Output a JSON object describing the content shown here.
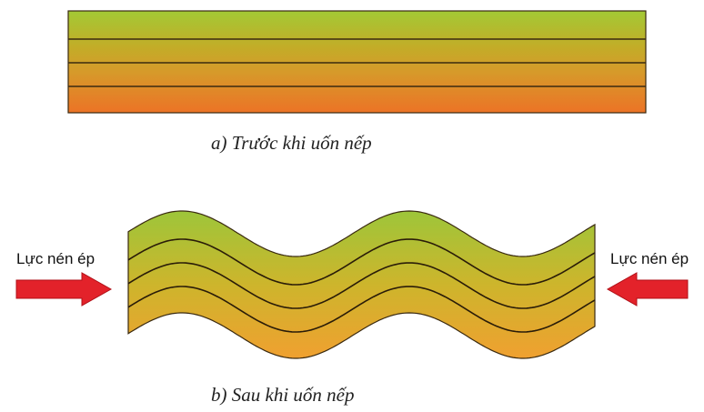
{
  "caption_before": "a) Trước khi uốn nếp",
  "caption_after": "b) Sau khi uốn nếp",
  "force_label_left": "Lực nén ép",
  "force_label_right": "Lực nén ép",
  "colors": {
    "layer_top": "#a3c935",
    "layer_bottom": "#ec7326",
    "fold_top": "#9cc63a",
    "fold_bottom": "#f0a030",
    "arrow": "#e3222a",
    "outline": "#3a2a10"
  }
}
